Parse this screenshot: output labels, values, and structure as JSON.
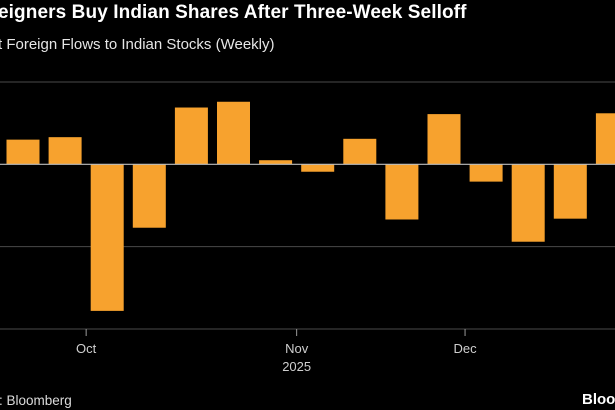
{
  "header": {
    "title": "eigners Buy Indian Shares After Three-Week Selloff",
    "subtitle": "t Foreign Flows to Indian Stocks (Weekly)"
  },
  "footer": {
    "source": ": Bloomberg",
    "brand": "Bloo"
  },
  "colors": {
    "bar": "#f7a22e",
    "background": "#000000",
    "grid": "#4a4a4a",
    "zero_line": "#bdbdbd"
  },
  "chart_data": {
    "type": "bar",
    "title": "eigners Buy Indian Shares After Three-Week Selloff",
    "subtitle": "t Foreign Flows to Indian Stocks (Weekly)",
    "xlabel": "2025",
    "ylabel": "",
    "ylim": [
      -2.0,
      1.0
    ],
    "grid": true,
    "legend": "none",
    "x_ticks": [
      {
        "label": "Oct",
        "after_bar": 2
      },
      {
        "label": "Nov",
        "after_bar": 7
      },
      {
        "label": "Dec",
        "after_bar": 11
      }
    ],
    "year_label": "2025",
    "values": [
      0.3,
      0.33,
      -1.78,
      -0.77,
      0.69,
      0.76,
      0.05,
      -0.09,
      0.31,
      -0.67,
      0.61,
      -0.21,
      -0.94,
      -0.66,
      0.62
    ]
  }
}
